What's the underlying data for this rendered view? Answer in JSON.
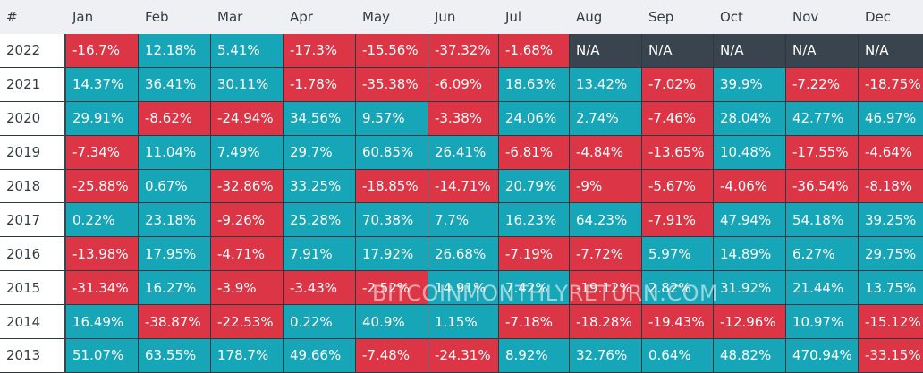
{
  "header": [
    "#",
    "Jan",
    "Feb",
    "Mar",
    "Apr",
    "May",
    "Jun",
    "Jul",
    "Aug",
    "Sep",
    "Oct",
    "Nov",
    "Dec"
  ],
  "rows": [
    {
      "year": "2022",
      "values": [
        "-16.7%",
        "12.18%",
        "5.41%",
        "-17.3%",
        "-15.56%",
        "-37.32%",
        "-1.68%",
        "N/A",
        "N/A",
        "N/A",
        "N/A",
        "N/A"
      ]
    },
    {
      "year": "2021",
      "values": [
        "14.37%",
        "36.41%",
        "30.11%",
        "-1.78%",
        "-35.38%",
        "-6.09%",
        "18.63%",
        "13.42%",
        "-7.02%",
        "39.9%",
        "-7.22%",
        "-18.75%"
      ]
    },
    {
      "year": "2020",
      "values": [
        "29.91%",
        "-8.62%",
        "-24.94%",
        "34.56%",
        "9.57%",
        "-3.38%",
        "24.06%",
        "2.74%",
        "-7.46%",
        "28.04%",
        "42.77%",
        "46.97%"
      ]
    },
    {
      "year": "2019",
      "values": [
        "-7.34%",
        "11.04%",
        "7.49%",
        "29.7%",
        "60.85%",
        "26.41%",
        "-6.81%",
        "-4.84%",
        "-13.65%",
        "10.48%",
        "-17.55%",
        "-4.64%"
      ]
    },
    {
      "year": "2018",
      "values": [
        "-25.88%",
        "0.67%",
        "-32.86%",
        "33.25%",
        "-18.85%",
        "-14.71%",
        "20.79%",
        "-9%",
        "-5.67%",
        "-4.06%",
        "-36.54%",
        "-8.18%"
      ]
    },
    {
      "year": "2017",
      "values": [
        "0.22%",
        "23.18%",
        "-9.26%",
        "25.28%",
        "70.38%",
        "7.7%",
        "16.23%",
        "64.23%",
        "-7.91%",
        "47.94%",
        "54.18%",
        "39.25%"
      ]
    },
    {
      "year": "2016",
      "values": [
        "-13.98%",
        "17.95%",
        "-4.71%",
        "7.91%",
        "17.92%",
        "26.68%",
        "-7.19%",
        "-7.72%",
        "5.97%",
        "14.89%",
        "6.27%",
        "29.75%"
      ]
    },
    {
      "year": "2015",
      "values": [
        "-31.34%",
        "16.27%",
        "-3.9%",
        "-3.43%",
        "-2.52%",
        "14.91%",
        "7.42%",
        "-19.12%",
        "2.82%",
        "31.92%",
        "21.44%",
        "13.75%"
      ]
    },
    {
      "year": "2014",
      "values": [
        "16.49%",
        "-38.87%",
        "-22.53%",
        "0.22%",
        "40.9%",
        "1.15%",
        "-7.18%",
        "-18.28%",
        "-19.43%",
        "-12.96%",
        "10.97%",
        "-15.12%"
      ]
    },
    {
      "year": "2013",
      "values": [
        "51.07%",
        "63.55%",
        "178.7%",
        "49.66%",
        "-7.48%",
        "-24.31%",
        "8.92%",
        "32.76%",
        "0.64%",
        "48.82%",
        "470.94%",
        "-33.15%"
      ]
    }
  ],
  "watermark": "BITCOINMONTHLYRETURN.COM",
  "colors": {
    "positive": "#17a6b8",
    "negative": "#dc3545",
    "na": "#3a444e"
  }
}
